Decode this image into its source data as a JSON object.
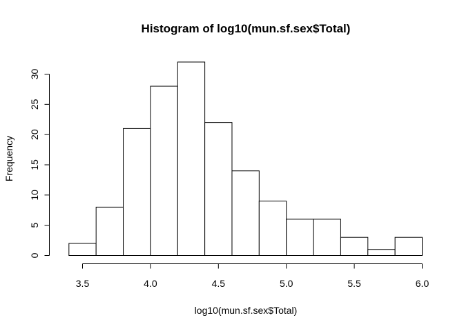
{
  "chart_data": {
    "type": "bar",
    "title": "Histogram of log10(mun.sf.sex$Total)",
    "xlabel": "log10(mun.sf.sex$Total)",
    "ylabel": "Frequency",
    "bins": [
      {
        "x0": 3.4,
        "x1": 3.6,
        "count": 2
      },
      {
        "x0": 3.6,
        "x1": 3.8,
        "count": 8
      },
      {
        "x0": 3.8,
        "x1": 4.0,
        "count": 21
      },
      {
        "x0": 4.0,
        "x1": 4.2,
        "count": 28
      },
      {
        "x0": 4.2,
        "x1": 4.4,
        "count": 32
      },
      {
        "x0": 4.4,
        "x1": 4.6,
        "count": 22
      },
      {
        "x0": 4.6,
        "x1": 4.8,
        "count": 14
      },
      {
        "x0": 4.8,
        "x1": 5.0,
        "count": 9
      },
      {
        "x0": 5.0,
        "x1": 5.2,
        "count": 6
      },
      {
        "x0": 5.2,
        "x1": 5.4,
        "count": 6
      },
      {
        "x0": 5.4,
        "x1": 5.6,
        "count": 3
      },
      {
        "x0": 5.6,
        "x1": 5.8,
        "count": 1
      },
      {
        "x0": 5.8,
        "x1": 6.0,
        "count": 3
      }
    ],
    "xticks": [
      3.5,
      4.0,
      4.5,
      5.0,
      5.5,
      6.0
    ],
    "xtick_labels": [
      "3.5",
      "4.0",
      "4.5",
      "5.0",
      "5.5",
      "6.0"
    ],
    "yticks": [
      0,
      5,
      10,
      15,
      20,
      25,
      30
    ],
    "ytick_labels": [
      "0",
      "5",
      "10",
      "15",
      "20",
      "25",
      "30"
    ],
    "xlim": [
      3.5,
      6.0
    ],
    "ylim": [
      0,
      30
    ],
    "grid": false,
    "colors": {
      "bar_fill": "#ffffff",
      "bar_stroke": "#000000",
      "axis": "#000000"
    }
  }
}
